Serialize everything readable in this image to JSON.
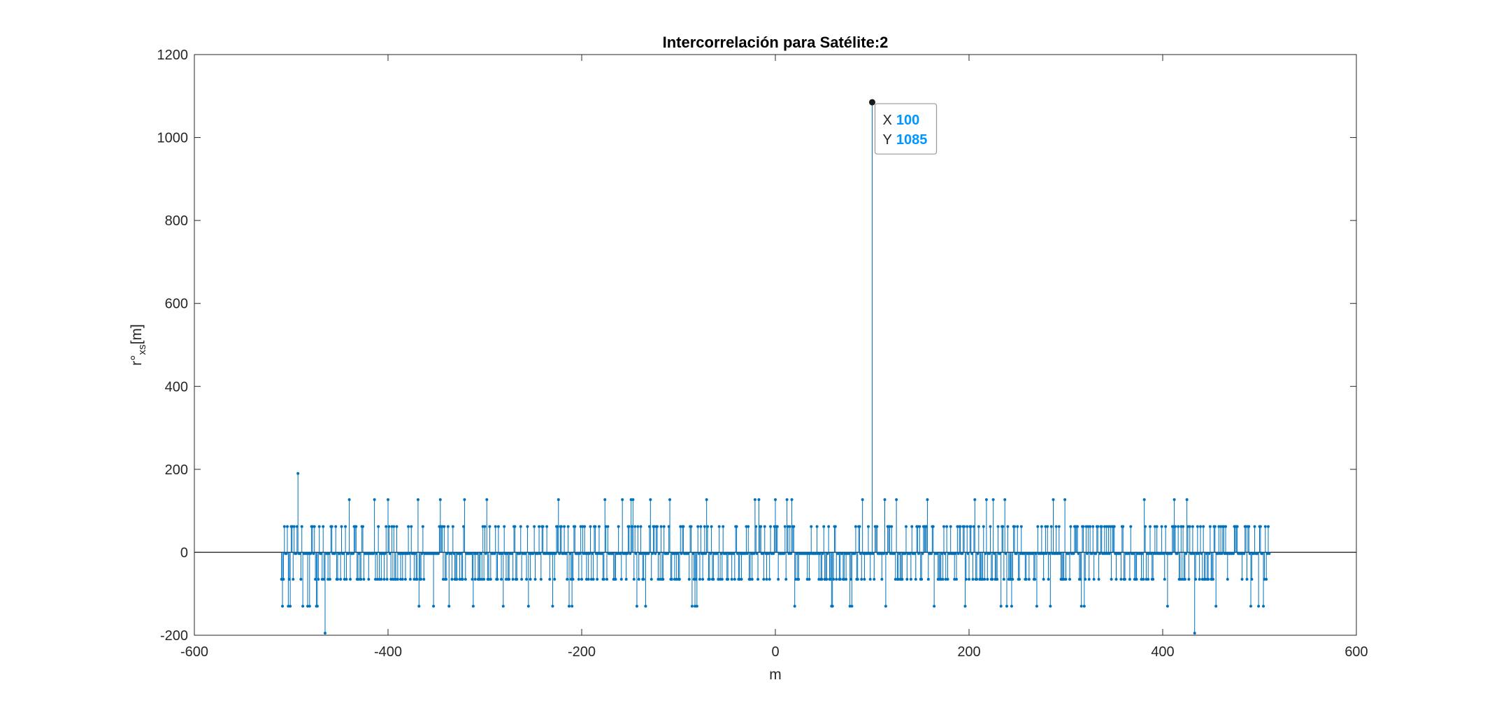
{
  "chart_data": {
    "type": "stem",
    "title": "Intercorrelación para Satélite:2",
    "xlabel": "m",
    "ylabel": {
      "base": "r°",
      "sub": "xs",
      "suffix": "[m]"
    },
    "xlim": [
      -600,
      600
    ],
    "ylim": [
      -200,
      1200
    ],
    "xticks": [
      -600,
      -400,
      -200,
      0,
      200,
      400,
      600
    ],
    "yticks": [
      -200,
      0,
      200,
      400,
      600,
      800,
      1000,
      1200
    ],
    "grid": false,
    "series_color": "#0072BD",
    "x_range": [
      -510,
      510
    ],
    "baseline_value": 0,
    "stem_levels": [
      -195,
      -130,
      -65,
      -3,
      62,
      127,
      190,
      1085
    ],
    "notable_points": [
      {
        "x": 100,
        "y": 1085
      },
      {
        "x": -493,
        "y": 190
      },
      {
        "x": -465,
        "y": -195
      },
      {
        "x": 433,
        "y": -195
      }
    ],
    "datatip": {
      "x_key": "X",
      "x_value": "100",
      "y_key": "Y",
      "y_value": "1085",
      "value_color": "#0096FF"
    }
  }
}
